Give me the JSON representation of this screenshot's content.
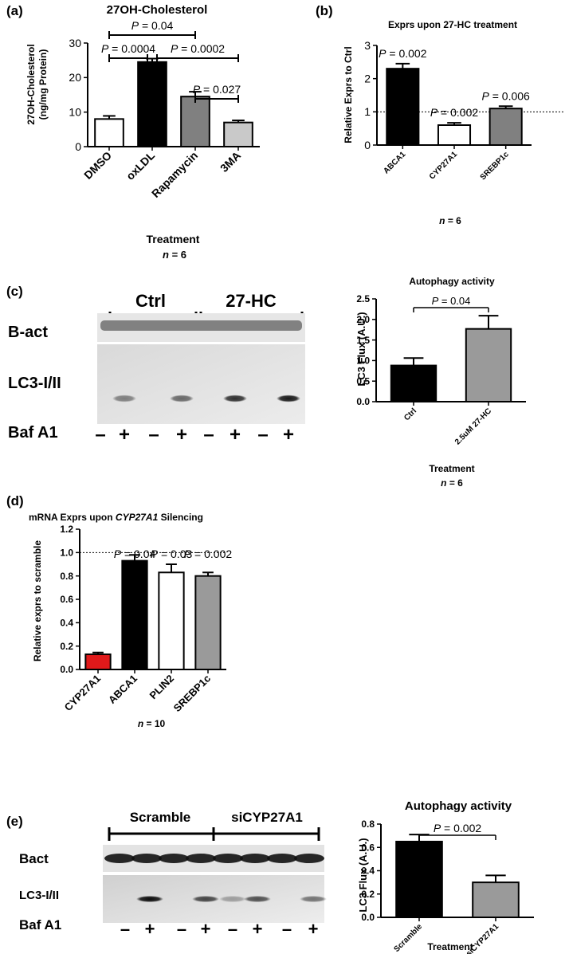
{
  "panels": {
    "a": {
      "letter": "(a)",
      "chart_data": {
        "type": "bar",
        "title": "27OH-Cholesterol",
        "ylabel": [
          "27OH-Cholesterol",
          "(ng/mg Protein)"
        ],
        "xlabel": "Treatment",
        "n_prefix": "n",
        "n_suffix": " = 6",
        "ylim": [
          0,
          30
        ],
        "yticks": [
          0,
          10,
          20,
          30
        ],
        "categories": [
          "DMSO",
          "oxLDL",
          "Rapamycin",
          "3MA"
        ],
        "values": [
          8,
          24.5,
          14.5,
          7
        ],
        "errors": [
          0.9,
          1.0,
          1.4,
          0.6
        ],
        "bar_colors": [
          "#ffffff",
          "#000000",
          "#808080",
          "#c9c9c9"
        ],
        "brackets": [
          {
            "from": 0,
            "to": 2,
            "p_prefix": "P",
            "p_value": " = 0.04"
          },
          {
            "from": 0,
            "to": 1,
            "p_prefix": "P",
            "p_value": " = 0.0004"
          },
          {
            "from": 1,
            "to": 3,
            "p_prefix": "P",
            "p_value": " = 0.0002"
          },
          {
            "from": 2,
            "to": 3,
            "p_prefix": "P",
            "p_value": " = 0.027"
          }
        ]
      }
    },
    "b": {
      "letter": "(b)",
      "chart_data": {
        "type": "bar",
        "title": "Exprs upon 27-HC treatment",
        "ylabel": "Relative Exprs to Ctrl",
        "n_prefix": "n",
        "n_suffix": " = 6",
        "ylim": [
          0,
          3
        ],
        "yticks": [
          0,
          1,
          2,
          3
        ],
        "reference_line": 1,
        "categories": [
          "ABCA1",
          "CYP27A1",
          "SREBP1c"
        ],
        "values": [
          2.3,
          0.6,
          1.1
        ],
        "errors": [
          0.15,
          0.07,
          0.07
        ],
        "bar_colors": [
          "#000000",
          "#ffffff",
          "#808080"
        ],
        "p_labels": [
          {
            "p_prefix": "P",
            "p_value": " = 0.002"
          },
          {
            "p_prefix": "P",
            "p_value": " = 0.002"
          },
          {
            "p_prefix": "P",
            "p_value": " = 0.006"
          }
        ]
      }
    },
    "c": {
      "letter": "(c)",
      "blot": {
        "group_labels": [
          "Ctrl",
          "27-HC"
        ],
        "row_labels": [
          "B-act",
          "LC3-I/II",
          "Baf A1"
        ],
        "baf_signs": [
          "–",
          "+",
          "–",
          "+",
          "–",
          "+",
          "–",
          "+"
        ],
        "lc3_intensity": [
          0,
          0.45,
          0,
          0.55,
          0,
          0.8,
          0,
          0.9
        ]
      },
      "chart_data": {
        "type": "bar",
        "title": "Autophagy activity",
        "ylabel": "LC3 Flux (A.U.)",
        "xlabel": "Treatment",
        "n_prefix": "n",
        "n_suffix": " = 6",
        "ylim": [
          0,
          2.5
        ],
        "yticks": [
          "0.0",
          "0.5",
          "1.0",
          "1.5",
          "2.0",
          "2.5"
        ],
        "categories": [
          "Ctrl",
          "2.5uM 27-HC"
        ],
        "values": [
          0.88,
          1.77
        ],
        "errors": [
          0.18,
          0.32
        ],
        "bar_colors": [
          "#000000",
          "#9a9a9a"
        ],
        "bracket": {
          "p_prefix": "P",
          "p_value": " = 0.04"
        }
      }
    },
    "d": {
      "letter": "(d)",
      "chart_data": {
        "type": "bar",
        "title_before": "mRNA Exprs upon ",
        "title_italic": "CYP27A1",
        "title_after": " Silencing",
        "ylabel": "Relative exprs to scramble",
        "n_prefix": "n",
        "n_suffix": " = 10",
        "ylim": [
          0,
          1.2
        ],
        "yticks": [
          "0.0",
          "0.2",
          "0.4",
          "0.6",
          "0.8",
          "1.0",
          "1.2"
        ],
        "reference_line": 1.0,
        "categories": [
          "CYP27A1",
          "ABCA1",
          "PLIN2",
          "SREBP1c"
        ],
        "values": [
          0.13,
          0.93,
          0.83,
          0.8
        ],
        "errors": [
          0.015,
          0.05,
          0.07,
          0.03
        ],
        "bar_colors": [
          "#e0191a",
          "#000000",
          "#ffffff",
          "#9a9a9a"
        ],
        "p_labels": [
          null,
          {
            "p_prefix": "P",
            "p_value": " = 0.04"
          },
          {
            "p_prefix": "P",
            "p_value": " = 0.03"
          },
          {
            "p_prefix": "P",
            "p_value": " = 0.002"
          }
        ]
      }
    },
    "e": {
      "letter": "(e)",
      "blot": {
        "group_labels": [
          "Scramble",
          "siCYP27A1"
        ],
        "row_labels": [
          "Bact",
          "LC3-I/II",
          "Baf A1"
        ],
        "baf_signs": [
          "–",
          "+",
          "–",
          "+",
          "–",
          "+",
          "–",
          "+"
        ],
        "lc3_intensity": [
          0,
          0.95,
          0,
          0.7,
          0.3,
          0.65,
          0,
          0.5
        ]
      },
      "chart_data": {
        "type": "bar",
        "title": "Autophagy activity",
        "ylabel": "LC3 Flux (A.U.)",
        "xlabel": "Treatment",
        "ylim": [
          0,
          0.8
        ],
        "yticks": [
          "0.0",
          "0.2",
          "0.4",
          "0.6",
          "0.8"
        ],
        "categories": [
          "Scramble",
          "siCYP27A1"
        ],
        "values": [
          0.65,
          0.3
        ],
        "errors": [
          0.06,
          0.06
        ],
        "bar_colors": [
          "#000000",
          "#9a9a9a"
        ],
        "bracket": {
          "p_prefix": "P",
          "p_value": " = 0.002"
        }
      }
    }
  }
}
